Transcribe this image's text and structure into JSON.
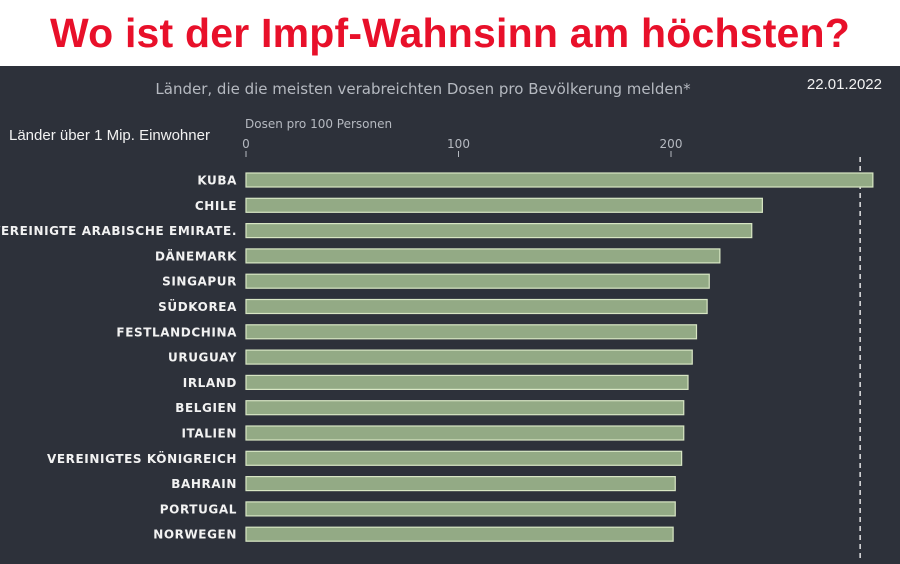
{
  "headline": "Wo ist der Impf-Wahnsinn am höchsten?",
  "subtitle": "Länder, die die meisten verabreichten Dosen pro Bevölkerung melden*",
  "date": "22.01.2022",
  "population_note": "Länder über 1 Mip. Einwohner",
  "colors": {
    "headline": "#e8102a",
    "background": "#2d313a",
    "bar_fill": "#93aa85",
    "bar_stroke": "#d8e6c4",
    "text": "#f2f2f2",
    "muted": "#b5b9c0"
  },
  "chart_data": {
    "type": "bar",
    "orientation": "horizontal",
    "xlabel": "Dosen pro 100 Personen",
    "xlim": [
      0,
      300
    ],
    "xticks": [
      0,
      100,
      200
    ],
    "reference_line": 289,
    "categories": [
      "KUBA",
      "CHILE",
      "VEREINIGTE ARABISCHE EMIRATE.",
      "DÄNEMARK",
      "SINGAPUR",
      "SÜDKOREA",
      "FESTLANDCHINA",
      "URUGUAY",
      "IRLAND",
      "BELGIEN",
      "ITALIEN",
      "VEREINIGTES KÖNIGREICH",
      "BAHRAIN",
      "PORTUGAL",
      "NORWEGEN"
    ],
    "values": [
      295,
      243,
      238,
      223,
      218,
      217,
      212,
      210,
      208,
      206,
      206,
      205,
      202,
      202,
      201
    ],
    "grid": false
  }
}
